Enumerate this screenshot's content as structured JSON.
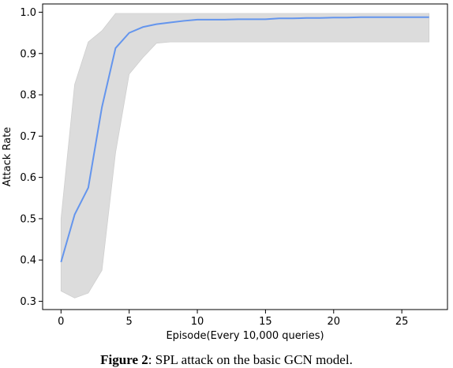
{
  "chart_data": {
    "type": "line",
    "xlabel": "Episode(Every 10,000 queries)",
    "ylabel": "Attack Rate",
    "xlim": [
      -1.35,
      28.35
    ],
    "ylim": [
      0.28,
      1.02
    ],
    "xticks": [
      0,
      5,
      10,
      15,
      20,
      25
    ],
    "yticks": [
      0.3,
      0.4,
      0.5,
      0.6,
      0.7,
      0.8,
      0.9,
      1.0
    ],
    "grid": false,
    "legend": "none",
    "series": [
      {
        "color": "#6495ed",
        "x": [
          0,
          1,
          2,
          3,
          4,
          5,
          6,
          7,
          8,
          9,
          10,
          11,
          12,
          13,
          14,
          15,
          16,
          17,
          18,
          19,
          20,
          21,
          22,
          23,
          24,
          25,
          26,
          27
        ],
        "mean": [
          0.395,
          0.51,
          0.575,
          0.77,
          0.913,
          0.95,
          0.964,
          0.971,
          0.975,
          0.979,
          0.982,
          0.982,
          0.982,
          0.983,
          0.983,
          0.983,
          0.985,
          0.985,
          0.986,
          0.986,
          0.987,
          0.987,
          0.988,
          0.988,
          0.988,
          0.988,
          0.988,
          0.988
        ],
        "upper": [
          0.5,
          0.825,
          0.928,
          0.955,
          0.997,
          0.997,
          0.997,
          0.997,
          0.997,
          0.997,
          0.997,
          0.997,
          0.997,
          0.997,
          0.997,
          0.997,
          0.997,
          0.997,
          0.997,
          0.997,
          0.997,
          0.997,
          0.997,
          0.997,
          0.997,
          0.997,
          0.997,
          0.997
        ],
        "lower": [
          0.325,
          0.308,
          0.32,
          0.375,
          0.66,
          0.85,
          0.89,
          0.925,
          0.928,
          0.928,
          0.928,
          0.928,
          0.928,
          0.928,
          0.928,
          0.928,
          0.928,
          0.928,
          0.928,
          0.928,
          0.928,
          0.928,
          0.928,
          0.928,
          0.928,
          0.928,
          0.928,
          0.928
        ],
        "band_color": "#dcdcdc"
      }
    ]
  },
  "caption": {
    "label": "Figure 2",
    "text": ": SPL attack on the basic GCN model."
  }
}
